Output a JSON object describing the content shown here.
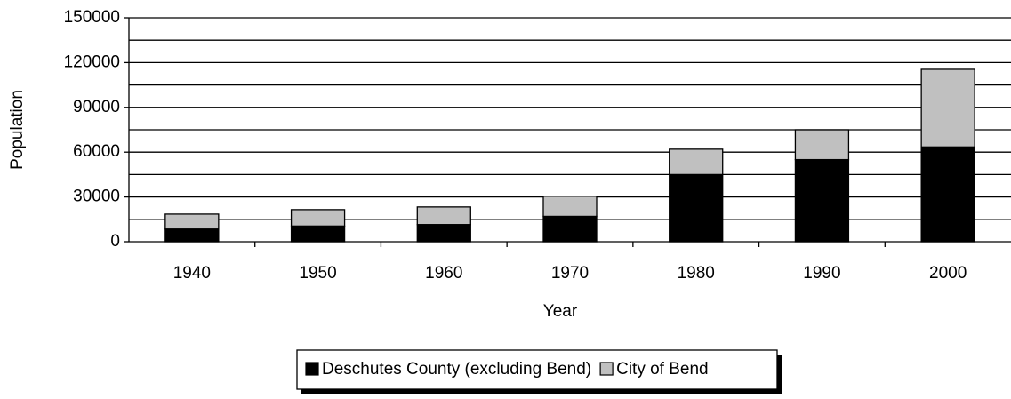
{
  "chart_data": {
    "type": "stacked_bar",
    "x_label": "Year",
    "y_label": "Population",
    "categories": [
      "1940",
      "1950",
      "1960",
      "1970",
      "1980",
      "1990",
      "2000"
    ],
    "series": [
      {
        "name": "Deschutes County (excluding Bend)",
        "color": "#000000",
        "values": [
          8500,
          10500,
          11500,
          17000,
          45000,
          55000,
          63500
        ]
      },
      {
        "name": "City of Bend",
        "color": "#c0c0c0",
        "values": [
          10000,
          11000,
          11800,
          13500,
          17000,
          20000,
          52000
        ]
      }
    ],
    "ylim": [
      0,
      150000
    ],
    "yticks": [
      0,
      30000,
      60000,
      90000,
      120000,
      150000
    ],
    "ygrid": [
      15000,
      30000,
      45000,
      60000,
      75000,
      90000,
      105000,
      120000,
      135000,
      150000
    ],
    "grid": true,
    "legend": "bottom"
  }
}
